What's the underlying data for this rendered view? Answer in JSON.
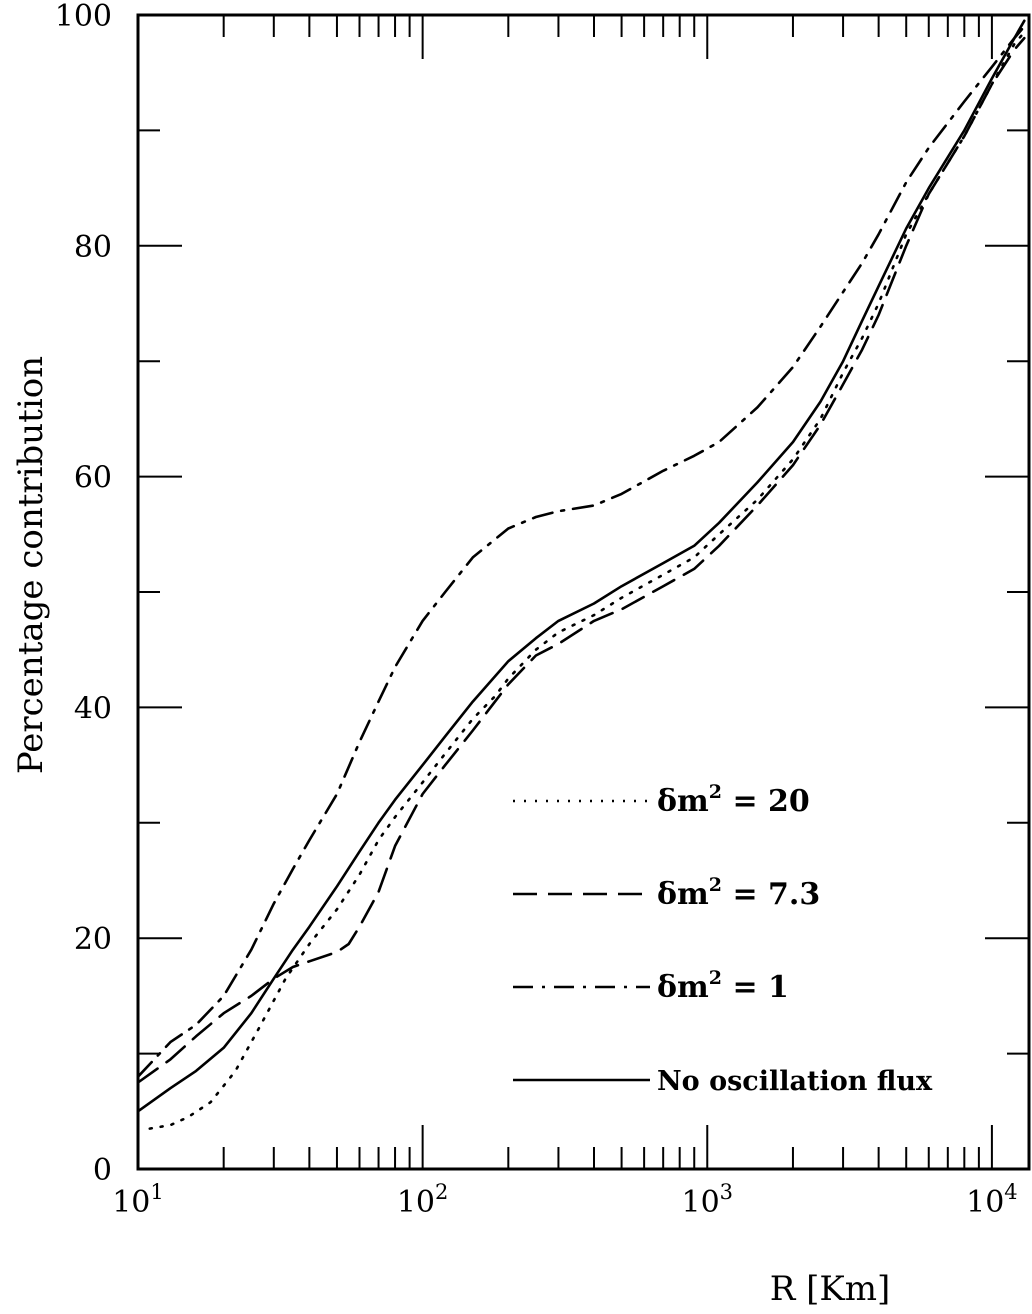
{
  "chart_data": {
    "type": "line",
    "title": "",
    "xlabel": "R [Km]",
    "ylabel": "Percentage contribution",
    "xscale": "log",
    "xlim": [
      10,
      13500
    ],
    "ylim": [
      0,
      100
    ],
    "grid": false,
    "legend_position": "lower-right",
    "x_ticks": [
      {
        "value": 10,
        "base": "10",
        "exp": "1"
      },
      {
        "value": 100,
        "base": "10",
        "exp": "2"
      },
      {
        "value": 1000,
        "base": "10",
        "exp": "3"
      },
      {
        "value": 10000,
        "base": "10",
        "exp": "4"
      }
    ],
    "y_ticks": [
      {
        "value": 0,
        "label": "0"
      },
      {
        "value": 20,
        "label": "20"
      },
      {
        "value": 40,
        "label": "40"
      },
      {
        "value": 60,
        "label": "60"
      },
      {
        "value": 80,
        "label": "80"
      },
      {
        "value": 100,
        "label": "100"
      }
    ],
    "series": [
      {
        "name": "δm² = 20",
        "legend": {
          "prefix": "δm",
          "sup": "2",
          "suffix": " = 20"
        },
        "style": "dotted",
        "points": [
          [
            11,
            3.5
          ],
          [
            13,
            3.8
          ],
          [
            15,
            4.5
          ],
          [
            18,
            5.8
          ],
          [
            22,
            8.5
          ],
          [
            27,
            12.5
          ],
          [
            33,
            16.5
          ],
          [
            40,
            19.5
          ],
          [
            50,
            22.5
          ],
          [
            60,
            25.5
          ],
          [
            70,
            28.5
          ],
          [
            80,
            30.5
          ],
          [
            100,
            33.5
          ],
          [
            120,
            36
          ],
          [
            150,
            39
          ],
          [
            180,
            41
          ],
          [
            200,
            42.5
          ],
          [
            250,
            45
          ],
          [
            300,
            46.5
          ],
          [
            400,
            48
          ],
          [
            500,
            49.5
          ],
          [
            700,
            51.5
          ],
          [
            900,
            53
          ],
          [
            1100,
            55
          ],
          [
            1500,
            58
          ],
          [
            2000,
            61.5
          ],
          [
            2500,
            65
          ],
          [
            3000,
            69
          ],
          [
            3500,
            72
          ],
          [
            4000,
            75
          ],
          [
            5000,
            81
          ],
          [
            6000,
            84.5
          ],
          [
            8000,
            89.5
          ],
          [
            10000,
            94
          ],
          [
            12000,
            97.5
          ],
          [
            13000,
            98.5
          ]
        ]
      },
      {
        "name": "δm² = 7.3",
        "legend": {
          "prefix": "δm",
          "sup": "2",
          "suffix": " = 7.3"
        },
        "style": "dashed",
        "points": [
          [
            10,
            7.5
          ],
          [
            13,
            9.5
          ],
          [
            16,
            11.5
          ],
          [
            20,
            13.5
          ],
          [
            25,
            15
          ],
          [
            30,
            16.5
          ],
          [
            35,
            17.5
          ],
          [
            40,
            18
          ],
          [
            50,
            18.8
          ],
          [
            55,
            19.5
          ],
          [
            60,
            21
          ],
          [
            70,
            24
          ],
          [
            80,
            28
          ],
          [
            100,
            32.5
          ],
          [
            120,
            35
          ],
          [
            150,
            38
          ],
          [
            200,
            42
          ],
          [
            250,
            44.5
          ],
          [
            300,
            45.5
          ],
          [
            400,
            47.5
          ],
          [
            500,
            48.5
          ],
          [
            700,
            50.5
          ],
          [
            900,
            52
          ],
          [
            1100,
            54
          ],
          [
            1500,
            57.5
          ],
          [
            2000,
            61
          ],
          [
            2500,
            64.5
          ],
          [
            3000,
            68
          ],
          [
            3500,
            71
          ],
          [
            4000,
            74
          ],
          [
            5000,
            80
          ],
          [
            6000,
            84.5
          ],
          [
            8000,
            89.5
          ],
          [
            10000,
            94
          ],
          [
            12000,
            97
          ],
          [
            13000,
            98
          ]
        ]
      },
      {
        "name": "δm² = 1",
        "legend": {
          "prefix": "δm",
          "sup": "2",
          "suffix": " = 1"
        },
        "style": "dashdot",
        "points": [
          [
            10,
            8
          ],
          [
            13,
            11
          ],
          [
            16,
            12.5
          ],
          [
            20,
            15
          ],
          [
            25,
            19
          ],
          [
            30,
            23
          ],
          [
            35,
            26
          ],
          [
            40,
            28.5
          ],
          [
            50,
            32.5
          ],
          [
            60,
            37
          ],
          [
            70,
            40.5
          ],
          [
            80,
            43.5
          ],
          [
            100,
            47.5
          ],
          [
            120,
            50
          ],
          [
            150,
            53
          ],
          [
            200,
            55.5
          ],
          [
            250,
            56.5
          ],
          [
            300,
            57
          ],
          [
            400,
            57.5
          ],
          [
            500,
            58.5
          ],
          [
            700,
            60.5
          ],
          [
            900,
            61.8
          ],
          [
            1100,
            63
          ],
          [
            1500,
            66
          ],
          [
            2000,
            69.5
          ],
          [
            2500,
            73
          ],
          [
            3000,
            76
          ],
          [
            3500,
            78.5
          ],
          [
            4000,
            81
          ],
          [
            5000,
            85.5
          ],
          [
            6000,
            88.5
          ],
          [
            8000,
            92.5
          ],
          [
            10000,
            95.5
          ],
          [
            12000,
            98
          ],
          [
            13000,
            99
          ]
        ]
      },
      {
        "name": "No oscillation flux",
        "legend": {
          "prefix": "No oscillation flux",
          "sup": "",
          "suffix": ""
        },
        "style": "solid",
        "points": [
          [
            10,
            5
          ],
          [
            13,
            7
          ],
          [
            16,
            8.5
          ],
          [
            20,
            10.5
          ],
          [
            25,
            13.5
          ],
          [
            30,
            16.5
          ],
          [
            35,
            19
          ],
          [
            40,
            21
          ],
          [
            50,
            24.5
          ],
          [
            60,
            27.5
          ],
          [
            70,
            30
          ],
          [
            80,
            32
          ],
          [
            100,
            35
          ],
          [
            120,
            37.5
          ],
          [
            150,
            40.5
          ],
          [
            200,
            44
          ],
          [
            250,
            46
          ],
          [
            300,
            47.5
          ],
          [
            400,
            49
          ],
          [
            500,
            50.5
          ],
          [
            700,
            52.5
          ],
          [
            900,
            54
          ],
          [
            1100,
            56
          ],
          [
            1500,
            59.5
          ],
          [
            2000,
            63
          ],
          [
            2500,
            66.5
          ],
          [
            3000,
            70
          ],
          [
            3500,
            73.5
          ],
          [
            4000,
            76.5
          ],
          [
            5000,
            81.5
          ],
          [
            6000,
            85
          ],
          [
            8000,
            90
          ],
          [
            10000,
            94.5
          ],
          [
            12000,
            98
          ],
          [
            13000,
            99.5
          ]
        ]
      }
    ]
  }
}
